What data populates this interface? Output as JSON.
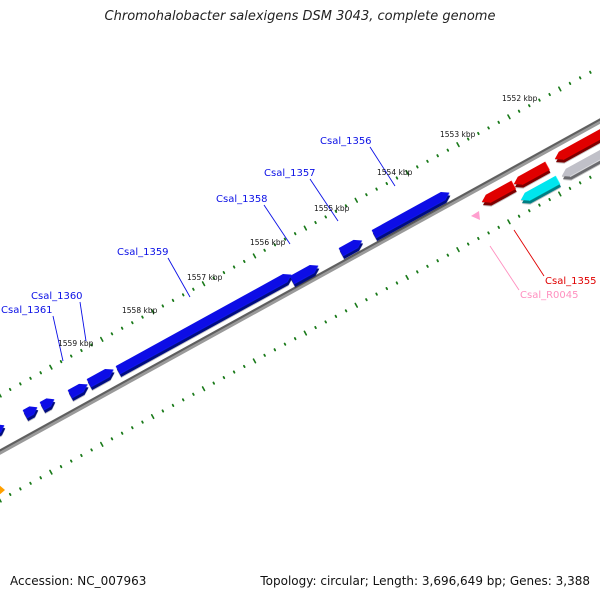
{
  "title": "Chromohalobacter salexigens DSM 3043, complete genome",
  "footer": {
    "accession": "Accession: NC_007963",
    "meta": "Topology: circular; Length: 3,696,649 bp; Genes: 3,388"
  },
  "colors": {
    "forward_gene": "#0b10e6",
    "reverse_gene": "#e00000",
    "rrna": "#00e5ee",
    "pseudo": "#c0c0c8",
    "trna": "#ff9fcf",
    "other": "#ffa000",
    "backbone": "#6e6e6e",
    "tick": "#1a7a1a"
  },
  "tick_labels": [
    "1552 kbp",
    "1553 kbp",
    "1554 kbp",
    "1555 kbp",
    "1556 kbp",
    "1557 kbp",
    "1558 kbp",
    "1559 kbp"
  ],
  "gene_labels": [
    {
      "name": "Csal_1356",
      "color": "#0b10e6"
    },
    {
      "name": "Csal_1357",
      "color": "#0b10e6"
    },
    {
      "name": "Csal_1358",
      "color": "#0b10e6"
    },
    {
      "name": "Csal_1359",
      "color": "#0b10e6"
    },
    {
      "name": "Csal_1360",
      "color": "#0b10e6"
    },
    {
      "name": "Csal_1361",
      "color": "#0b10e6"
    },
    {
      "name": "Csal_1355",
      "color": "#e00000"
    },
    {
      "name": "Csal_R0045",
      "color": "#ff8fbf"
    }
  ]
}
